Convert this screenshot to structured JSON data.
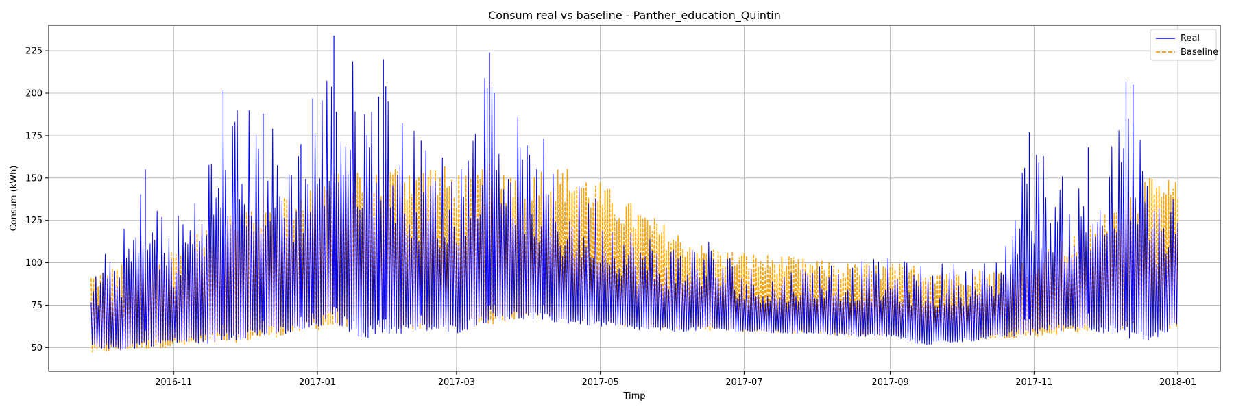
{
  "chart_data": {
    "type": "line",
    "title": "Consum real vs baseline - Panther_education_Quintin",
    "xlabel": "Timp",
    "ylabel": "Consum (kWh)",
    "x_range": [
      "2016-09-27",
      "2018-01-01"
    ],
    "xlim": [
      "2016-09-09",
      "2018-01-19"
    ],
    "ylim": [
      36,
      240
    ],
    "x_ticks": [
      "2016-11",
      "2017-01",
      "2017-03",
      "2017-05",
      "2017-07",
      "2017-09",
      "2017-11",
      "2018-01"
    ],
    "x_tick_dates": [
      "2016-11-01",
      "2017-01-01",
      "2017-03-01",
      "2017-05-01",
      "2017-07-01",
      "2017-09-01",
      "2017-11-01",
      "2018-01-01"
    ],
    "y_ticks": [
      50,
      75,
      100,
      125,
      150,
      175,
      200,
      225
    ],
    "grid": true,
    "legend_position": "top-right",
    "series": [
      {
        "name": "Real",
        "color": "#0000ff",
        "style": "solid",
        "envelope": {
          "dates": [
            "2016-09-27",
            "2016-10-10",
            "2016-10-20",
            "2016-11-01",
            "2016-11-15",
            "2016-11-25",
            "2016-12-10",
            "2016-12-25",
            "2017-01-08",
            "2017-01-20",
            "2017-02-01",
            "2017-02-15",
            "2017-03-01",
            "2017-03-15",
            "2017-04-01",
            "2017-04-15",
            "2017-05-01",
            "2017-05-15",
            "2017-06-01",
            "2017-06-15",
            "2017-07-01",
            "2017-07-15",
            "2017-08-01",
            "2017-08-15",
            "2017-09-01",
            "2017-09-15",
            "2017-10-01",
            "2017-10-15",
            "2017-10-25",
            "2017-11-01",
            "2017-11-15",
            "2017-11-25",
            "2017-12-05",
            "2017-12-12",
            "2017-12-20",
            "2018-01-01"
          ],
          "lows": [
            50,
            48,
            50,
            52,
            52,
            54,
            56,
            58,
            64,
            55,
            57,
            59,
            58,
            65,
            66,
            64,
            62,
            60,
            59,
            60,
            59,
            58,
            58,
            56,
            56,
            51,
            53,
            55,
            56,
            57,
            60,
            60,
            57,
            55,
            53,
            62
          ],
          "highs": [
            97,
            118,
            155,
            125,
            170,
            202,
            188,
            175,
            234,
            220,
            204,
            172,
            168,
            224,
            173,
            150,
            145,
            122,
            114,
            118,
            100,
            96,
            104,
            102,
            103,
            101,
            101,
            103,
            150,
            177,
            148,
            157,
            176,
            207,
            151,
            152
          ]
        },
        "peaks": [
          [
            "2016-10-20",
            155
          ],
          [
            "2016-11-22",
            202
          ],
          [
            "2016-12-09",
            188
          ],
          [
            "2016-12-25",
            170
          ],
          [
            "2016-12-30",
            197
          ],
          [
            "2017-01-08",
            234
          ],
          [
            "2017-01-09",
            189
          ],
          [
            "2017-01-27",
            198
          ],
          [
            "2017-01-29",
            220
          ],
          [
            "2017-01-30",
            204
          ],
          [
            "2017-02-14",
            172
          ],
          [
            "2017-03-14",
            203
          ],
          [
            "2017-03-15",
            224
          ],
          [
            "2017-03-17",
            200
          ],
          [
            "2017-04-07",
            173
          ],
          [
            "2017-10-28",
            156
          ],
          [
            "2017-10-30",
            177
          ],
          [
            "2017-11-24",
            168
          ],
          [
            "2017-12-10",
            207
          ],
          [
            "2017-12-13",
            205
          ]
        ]
      },
      {
        "name": "Baseline",
        "color": "#ffa500",
        "style": "dashed",
        "envelope": {
          "dates": [
            "2016-09-27",
            "2016-10-10",
            "2016-11-01",
            "2016-11-15",
            "2016-12-01",
            "2016-12-15",
            "2017-01-01",
            "2017-01-15",
            "2017-02-01",
            "2017-02-15",
            "2017-03-01",
            "2017-03-15",
            "2017-04-01",
            "2017-04-20",
            "2017-05-01",
            "2017-05-15",
            "2017-06-01",
            "2017-06-15",
            "2017-07-01",
            "2017-07-15",
            "2017-08-01",
            "2017-08-15",
            "2017-09-01",
            "2017-09-15",
            "2017-10-01",
            "2017-10-15",
            "2017-11-01",
            "2017-11-15",
            "2017-12-01",
            "2017-12-15",
            "2018-01-01"
          ],
          "lows": [
            46,
            48,
            50,
            51,
            53,
            56,
            60,
            62,
            61,
            60,
            60,
            63,
            68,
            66,
            64,
            62,
            61,
            60,
            59,
            58,
            58,
            56,
            57,
            55,
            55,
            55,
            56,
            58,
            60,
            60,
            60
          ],
          "highs": [
            95,
            100,
            110,
            125,
            136,
            142,
            150,
            158,
            159,
            162,
            155,
            158,
            158,
            157,
            148,
            135,
            120,
            110,
            107,
            105,
            102,
            100,
            100,
            99,
            97,
            96,
            104,
            115,
            130,
            150,
            150
          ]
        }
      }
    ]
  },
  "legend": {
    "items": [
      "Real",
      "Baseline"
    ]
  }
}
